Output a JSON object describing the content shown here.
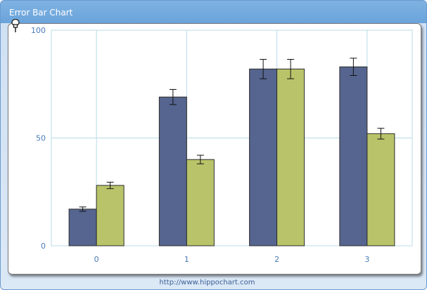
{
  "window": {
    "title": "Error Bar Chart"
  },
  "footer": {
    "link_text": "http://www.hippochart.com"
  },
  "colors": {
    "series1": "#55658f",
    "series2": "#b9c46a",
    "grid": "#b8dbe8",
    "axis_label": "#4a7ab8"
  },
  "chart_data": {
    "type": "bar",
    "categories": [
      "0",
      "1",
      "2",
      "3"
    ],
    "series": [
      {
        "values": [
          17,
          69,
          82,
          83
        ],
        "error": [
          1,
          3.5,
          4.5,
          4
        ]
      },
      {
        "values": [
          28,
          40,
          82,
          52
        ],
        "error": [
          1.5,
          2,
          4.5,
          2.5
        ]
      }
    ],
    "ylim": [
      0,
      100
    ],
    "yticks": [
      "0",
      "50",
      "100"
    ],
    "grid": true,
    "legend": "none"
  }
}
